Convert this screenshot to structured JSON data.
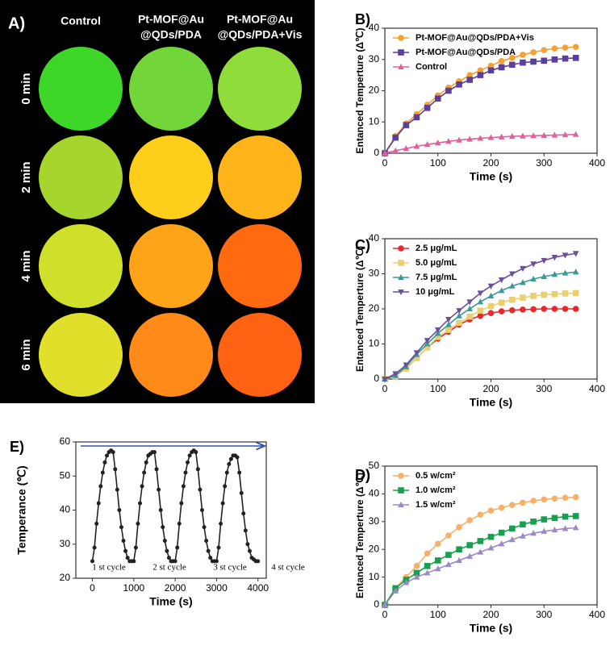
{
  "thermal_images": {
    "label": "A)",
    "columns": [
      [
        "Control"
      ],
      [
        "Pt-MOF@Au",
        "@QDs/PDA"
      ],
      [
        "Pt-MOF@Au",
        "@QDs/PDA+Vis"
      ]
    ],
    "rows": [
      "0 min",
      "2 min",
      "4 min",
      "6 min"
    ],
    "colors": [
      [
        "#3fd62a",
        "#72d63a",
        "#8fdc3a"
      ],
      [
        "#a6d62e",
        "#ffce1a",
        "#ffb41a"
      ],
      [
        "#cfe02a",
        "#ffa418",
        "#ff6a10"
      ],
      [
        "#e0e02a",
        "#ff8a18",
        "#ff6210"
      ]
    ]
  },
  "chart_data": [
    {
      "type": "line",
      "panel_label": "B)",
      "xlabel": "Time (s)",
      "ylabel": "Entanced Temperture (Δ℃)",
      "xlim": [
        0,
        400
      ],
      "ylim": [
        0,
        40
      ],
      "xticks": [
        0,
        100,
        200,
        300,
        400
      ],
      "yticks": [
        0,
        10,
        20,
        30,
        40
      ],
      "legend": "upper left",
      "x": [
        0,
        20,
        40,
        60,
        80,
        100,
        120,
        140,
        160,
        180,
        200,
        220,
        240,
        260,
        280,
        300,
        320,
        340,
        360
      ],
      "series": [
        {
          "name": "Pt-MOF@Au@QDs/PDA+Vis",
          "color": "#f5a030",
          "marker": "circle",
          "values": [
            0,
            5.5,
            9.5,
            12.5,
            15.5,
            18.5,
            21,
            23,
            25,
            26.5,
            28,
            29.5,
            30.5,
            31.5,
            32.3,
            33,
            33.5,
            33.8,
            34
          ]
        },
        {
          "name": "Pt-MOF@Au@QDs/PDA",
          "color": "#5b3f9a",
          "marker": "square",
          "values": [
            0,
            5,
            9,
            11.5,
            14.5,
            17.5,
            20,
            22,
            23.5,
            25,
            26.5,
            27.5,
            28.3,
            29,
            29.3,
            29.6,
            30,
            30.3,
            30.5
          ]
        },
        {
          "name": "Control",
          "color": "#e0609a",
          "marker": "triangle",
          "values": [
            0,
            0.8,
            1.5,
            2.2,
            2.8,
            3.3,
            3.8,
            4.2,
            4.5,
            4.8,
            5,
            5.2,
            5.4,
            5.5,
            5.6,
            5.7,
            5.8,
            5.9,
            6
          ]
        }
      ]
    },
    {
      "type": "line",
      "panel_label": "C)",
      "xlabel": "Time (s)",
      "ylabel": "Entanced Temperture (Δ℃)",
      "xlim": [
        0,
        400
      ],
      "ylim": [
        0,
        40
      ],
      "xticks": [
        0,
        100,
        200,
        300,
        400
      ],
      "yticks": [
        0,
        10,
        20,
        30,
        40
      ],
      "legend": "upper left",
      "x": [
        0,
        20,
        40,
        60,
        80,
        100,
        120,
        140,
        160,
        180,
        200,
        220,
        240,
        260,
        280,
        300,
        320,
        340,
        360
      ],
      "series": [
        {
          "name": "2.5 μg/mL",
          "color": "#e8282a",
          "marker": "circle",
          "values": [
            0,
            1,
            3,
            6,
            9,
            11.5,
            13.5,
            15.5,
            17,
            18,
            18.8,
            19.3,
            19.6,
            19.8,
            19.9,
            20,
            20,
            20,
            20
          ]
        },
        {
          "name": "5.0 μg/mL",
          "color": "#e8d070",
          "marker": "square",
          "values": [
            0,
            0.8,
            3,
            6,
            9,
            12,
            14,
            16,
            17.8,
            19.5,
            20.8,
            21.8,
            22.6,
            23.2,
            23.7,
            24,
            24.2,
            24.4,
            24.5
          ]
        },
        {
          "name": "7.5 μg/mL",
          "color": "#3a9a9a",
          "marker": "triangle",
          "values": [
            0,
            1,
            3.5,
            7,
            10,
            13,
            15.5,
            18,
            20,
            22,
            23.7,
            25.2,
            26.5,
            27.5,
            28.5,
            29.2,
            29.8,
            30.2,
            30.5
          ]
        },
        {
          "name": "10 μg/mL",
          "color": "#6a4f9a",
          "marker": "triangle-down",
          "values": [
            0,
            1.5,
            4,
            7.5,
            11,
            14,
            17,
            19.5,
            22,
            24.5,
            26.5,
            28.3,
            30,
            31.5,
            32.8,
            33.8,
            34.7,
            35.3,
            35.8
          ]
        }
      ]
    },
    {
      "type": "line",
      "panel_label": "D)",
      "xlabel": "Time (s)",
      "ylabel": "Entanced Temperture (Δ℃)",
      "xlim": [
        0,
        400
      ],
      "ylim": [
        0,
        50
      ],
      "xticks": [
        0,
        100,
        200,
        300,
        400
      ],
      "yticks": [
        0,
        10,
        20,
        30,
        40,
        50
      ],
      "legend": "upper left",
      "x": [
        0,
        20,
        40,
        60,
        80,
        100,
        120,
        140,
        160,
        180,
        200,
        220,
        240,
        260,
        280,
        300,
        320,
        340,
        360
      ],
      "series": [
        {
          "name": "0.5 w/cm²",
          "color": "#f8b068",
          "marker": "circle",
          "values": [
            0,
            6,
            10,
            14,
            18.5,
            22,
            25,
            28,
            30.5,
            32.5,
            34,
            35,
            36,
            36.8,
            37.5,
            38,
            38.3,
            38.6,
            38.8
          ]
        },
        {
          "name": "1.0 w/cm²",
          "color": "#18a050",
          "marker": "square",
          "values": [
            0,
            6,
            9,
            11.5,
            14,
            16,
            18,
            20,
            21.5,
            23,
            24.5,
            26,
            27.5,
            29,
            30,
            30.8,
            31.3,
            31.8,
            32
          ]
        },
        {
          "name": "1.5 w/cm²",
          "color": "#9a88c8",
          "marker": "triangle",
          "values": [
            0,
            5,
            8,
            10,
            11.5,
            13,
            14.5,
            16,
            17.5,
            19,
            20.5,
            22,
            23.5,
            24.8,
            25.8,
            26.5,
            27,
            27.5,
            27.8
          ]
        }
      ]
    },
    {
      "type": "line",
      "panel_label": "E)",
      "xlabel": "Time (s)",
      "ylabel": "Temperance (℃)",
      "xlim": [
        -400,
        4200
      ],
      "ylim": [
        20,
        60
      ],
      "xticks": [
        0,
        1000,
        2000,
        3000,
        4000
      ],
      "yticks": [
        20,
        30,
        40,
        50,
        60
      ],
      "annotations": [
        "1 st cycle",
        "2 st cycle",
        "3 st cycle",
        "4 st cycle"
      ],
      "x": [
        0,
        50,
        100,
        150,
        200,
        250,
        300,
        350,
        400,
        450,
        500,
        550,
        600,
        650,
        700,
        750,
        800,
        850,
        900,
        950,
        1000,
        1050,
        1100,
        1150,
        1200,
        1250,
        1300,
        1350,
        1400,
        1450,
        1500,
        1550,
        1600,
        1650,
        1700,
        1750,
        1800,
        1850,
        1900,
        1950,
        2000,
        2050,
        2100,
        2150,
        2200,
        2250,
        2300,
        2350,
        2400,
        2450,
        2500,
        2550,
        2600,
        2650,
        2700,
        2750,
        2800,
        2850,
        2900,
        2950,
        3000,
        3050,
        3100,
        3150,
        3200,
        3250,
        3300,
        3350,
        3400,
        3450,
        3500,
        3550,
        3600,
        3650,
        3700,
        3750,
        3800,
        3850,
        3900,
        3950,
        4000
      ],
      "series": [
        {
          "color": "#222222",
          "marker": "circle",
          "values": [
            25,
            29,
            36,
            42,
            47,
            51,
            54,
            56,
            57,
            57.5,
            57,
            52,
            46,
            40,
            35,
            31,
            28,
            26,
            25,
            25,
            25,
            29,
            36,
            42,
            47,
            51,
            54,
            56,
            56.5,
            57,
            57,
            52,
            46,
            40,
            35,
            31,
            28,
            26,
            25,
            25,
            25,
            29,
            36,
            42,
            47,
            51,
            54,
            56,
            57,
            57.5,
            57,
            52,
            46,
            40,
            35,
            31,
            28,
            26,
            25,
            25,
            25,
            29,
            36,
            42,
            47,
            51,
            53.5,
            55,
            56,
            56,
            55.5,
            51,
            45,
            39,
            34,
            30,
            28,
            26,
            25.5,
            25,
            25
          ]
        }
      ]
    }
  ]
}
